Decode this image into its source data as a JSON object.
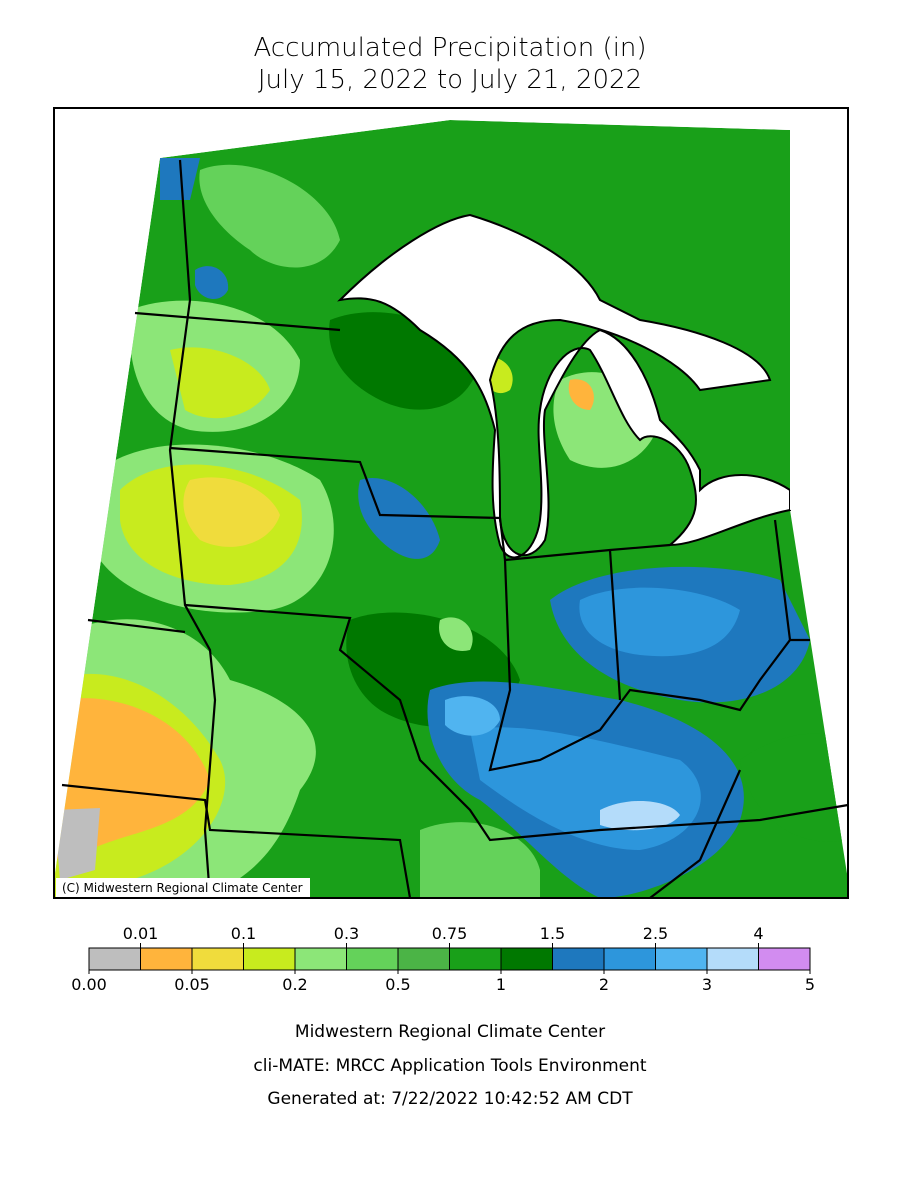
{
  "header": {
    "title": "Accumulated Precipitation (in)",
    "subtitle": "July 15, 2022 to July 21, 2022"
  },
  "map": {
    "credit": "(C) Midwestern Regional Climate Center"
  },
  "legend": {
    "colors": [
      "#bebebe",
      "#ffb43c",
      "#f0dc3c",
      "#c8eb1e",
      "#8ce678",
      "#64d25a",
      "#4bb446",
      "#19a019",
      "#007800",
      "#1e78be",
      "#2d96dc",
      "#50b4f0",
      "#b4dcfa",
      "#d28cf0"
    ],
    "labels": [
      "0.00",
      "0.01",
      "0.05",
      "0.1",
      "0.2",
      "0.3",
      "0.5",
      "0.75",
      "1",
      "1.5",
      "2",
      "2.5",
      "3",
      "4",
      "5"
    ]
  },
  "footer": {
    "lines": [
      "Midwestern Regional Climate Center",
      "cli-MATE: MRCC Application Tools Environment",
      "Generated at: 7/22/2022 10:42:52 AM CDT"
    ]
  }
}
